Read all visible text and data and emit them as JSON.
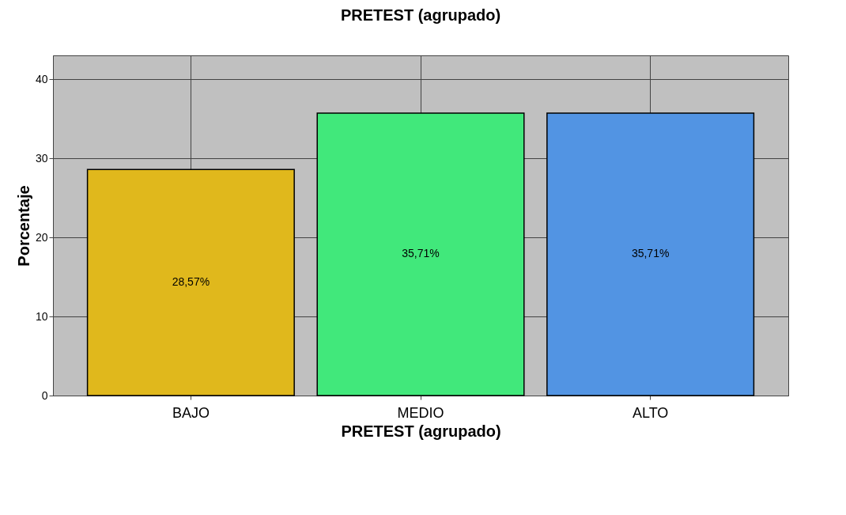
{
  "chart_data": {
    "type": "bar",
    "title": "PRETEST (agrupado)",
    "xlabel": "PRETEST (agrupado)",
    "ylabel": "Porcentaje",
    "categories": [
      "BAJO",
      "MEDIO",
      "ALTO"
    ],
    "values": [
      28.57,
      35.71,
      35.71
    ],
    "colors": [
      "#e0b81c",
      "#41e87b",
      "#5294e3"
    ],
    "value_labels": [
      "28,57%",
      "35,71%",
      "35,71%"
    ],
    "ylim": [
      0,
      43
    ],
    "yticks": [
      0,
      10,
      20,
      30,
      40
    ],
    "grid": true,
    "legend": false
  }
}
